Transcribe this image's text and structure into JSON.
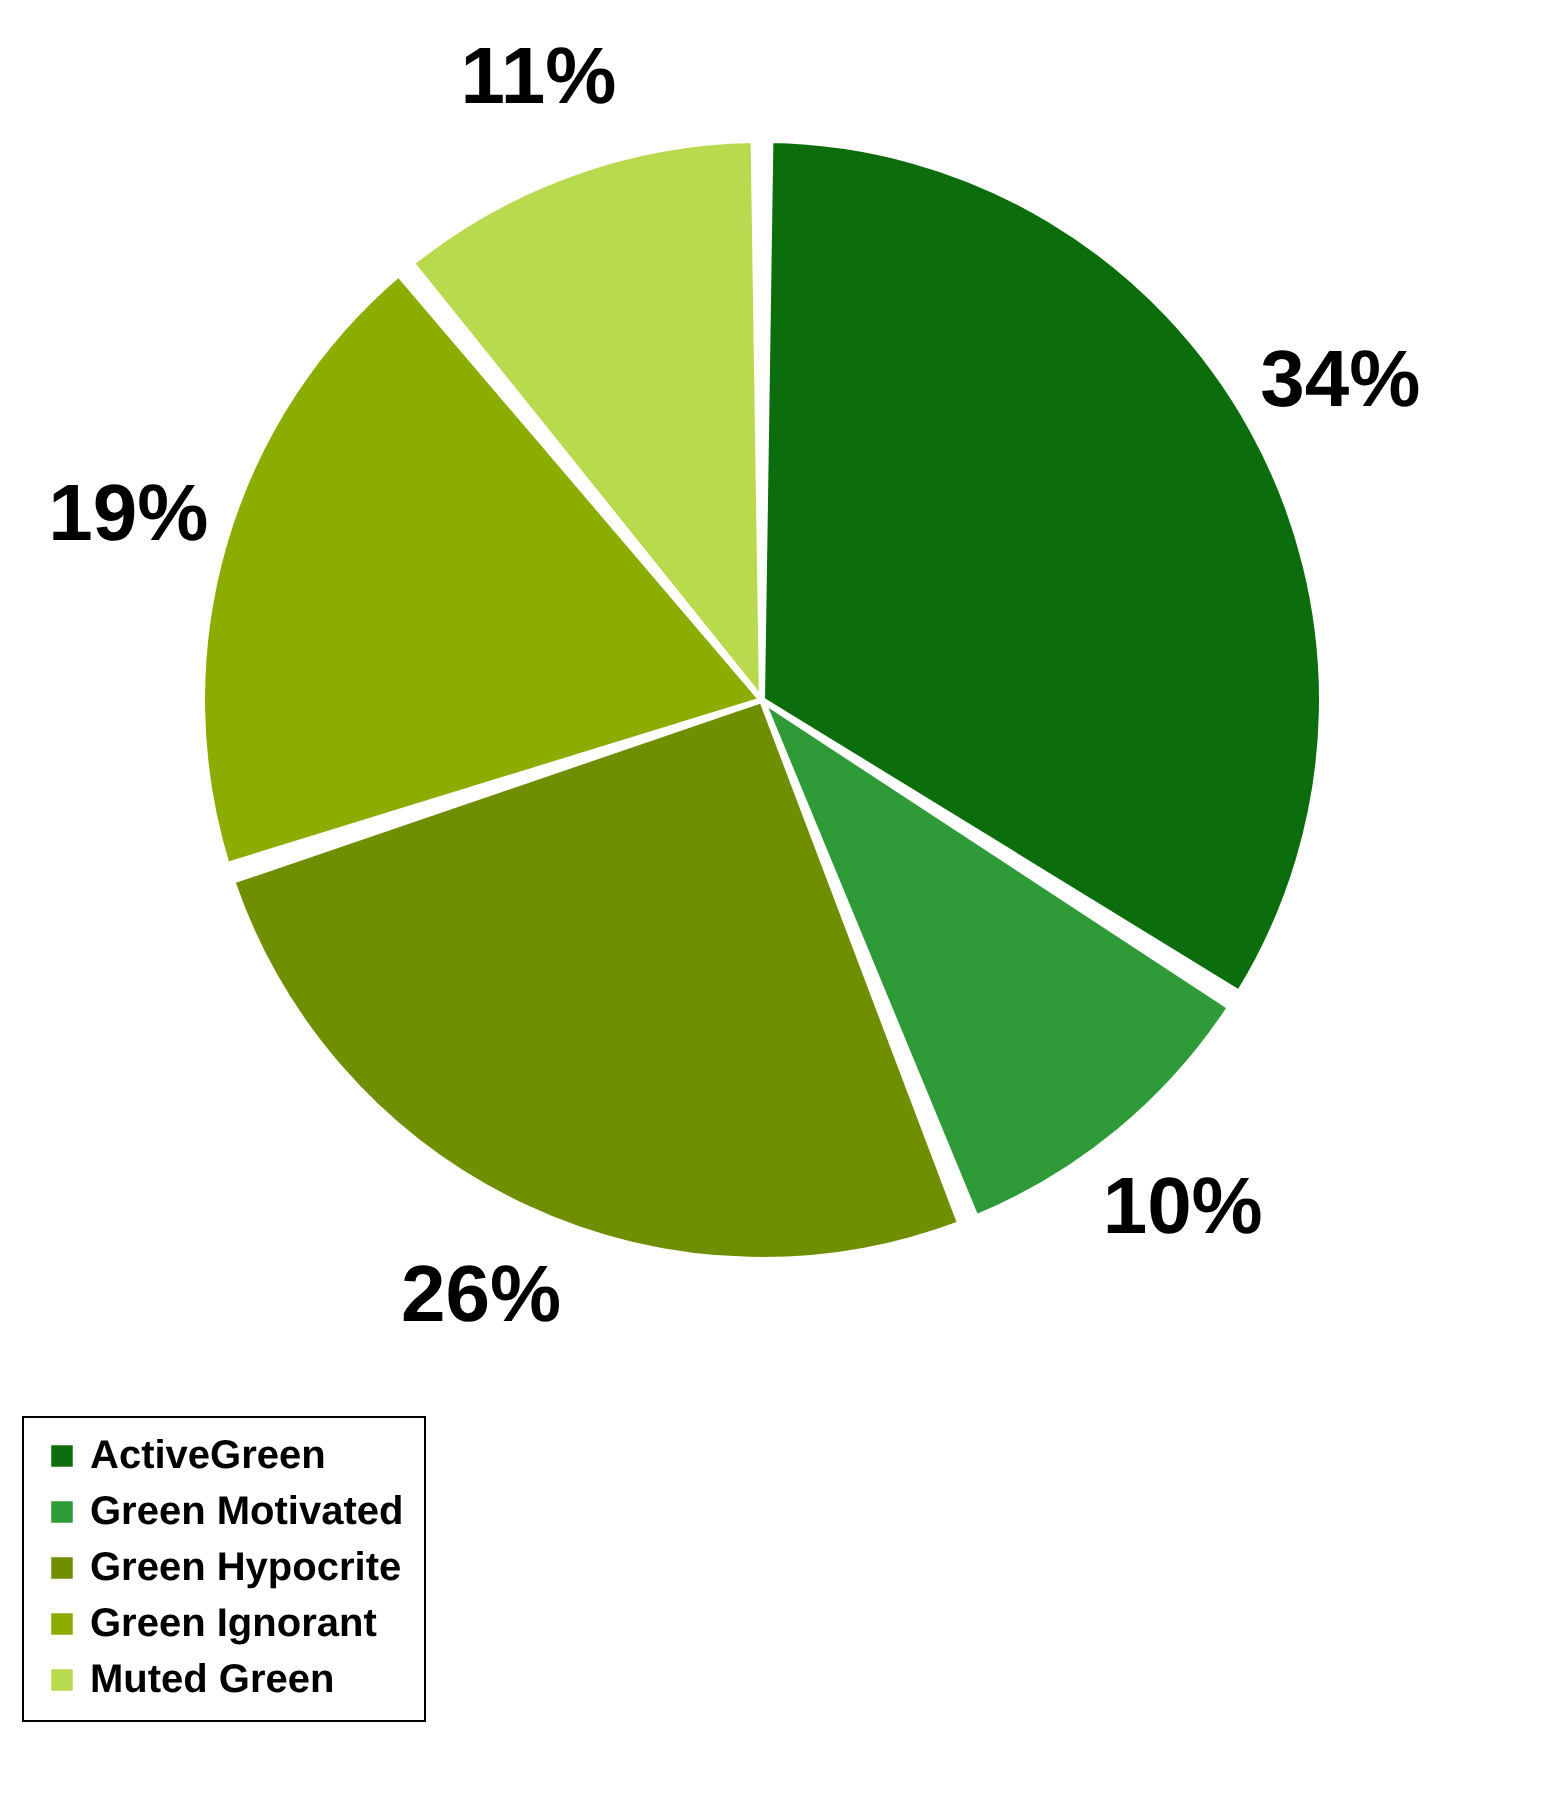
{
  "chart_data": {
    "type": "pie",
    "categories": [
      "ActiveGreen",
      "Green Motivated",
      "Green Hypocrite",
      "Green Ignorant",
      "Muted Green"
    ],
    "values": [
      34,
      10,
      26,
      19,
      11
    ],
    "value_labels": [
      "34%",
      "10%",
      "26%",
      "19%",
      "11%"
    ],
    "colors": [
      "#0b6d0b",
      "#2f9b38",
      "#6f8e00",
      "#8cad00",
      "#b9d94e"
    ],
    "legend": "bottom"
  }
}
